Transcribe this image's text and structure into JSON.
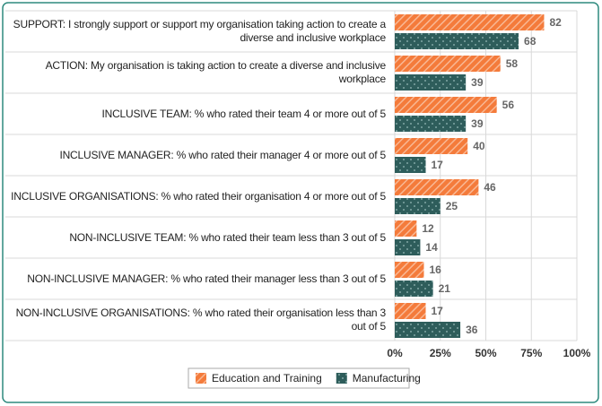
{
  "chart_data": {
    "type": "hbar",
    "categories": [
      "SUPPORT: I strongly support or support my organisation taking action to create a diverse and inclusive workplace",
      "ACTION: My organisation is taking action to create a diverse and inclusive workplace",
      "INCLUSIVE TEAM: % who rated their team 4 or more out of 5",
      "INCLUSIVE MANAGER: % who rated their manager 4 or more out of 5",
      "INCLUSIVE ORGANISATIONS: % who rated their organisation 4 or more out of 5",
      "NON-INCLUSIVE TEAM: % who rated their team less than 3 out of 5",
      "NON-INCLUSIVE MANAGER: % who rated their manager less than 3 out of 5",
      "NON-INCLUSIVE ORGANISATIONS: % who rated their organisation less than 3 out of 5"
    ],
    "series": [
      {
        "name": "Education and Training",
        "color": "#f47b3b",
        "values": [
          82,
          58,
          56,
          40,
          46,
          12,
          16,
          17
        ]
      },
      {
        "name": "Manufacturing",
        "color": "#2e5d5b",
        "values": [
          68,
          39,
          39,
          17,
          25,
          14,
          21,
          36
        ]
      }
    ],
    "xlim": [
      0,
      100
    ],
    "xticks": [
      {
        "value": 0,
        "label": "0%"
      },
      {
        "value": 25,
        "label": "25%"
      },
      {
        "value": 50,
        "label": "50%"
      },
      {
        "value": 75,
        "label": "75%"
      },
      {
        "value": 100,
        "label": "100%"
      }
    ],
    "grid": true,
    "legend": "bottom"
  }
}
